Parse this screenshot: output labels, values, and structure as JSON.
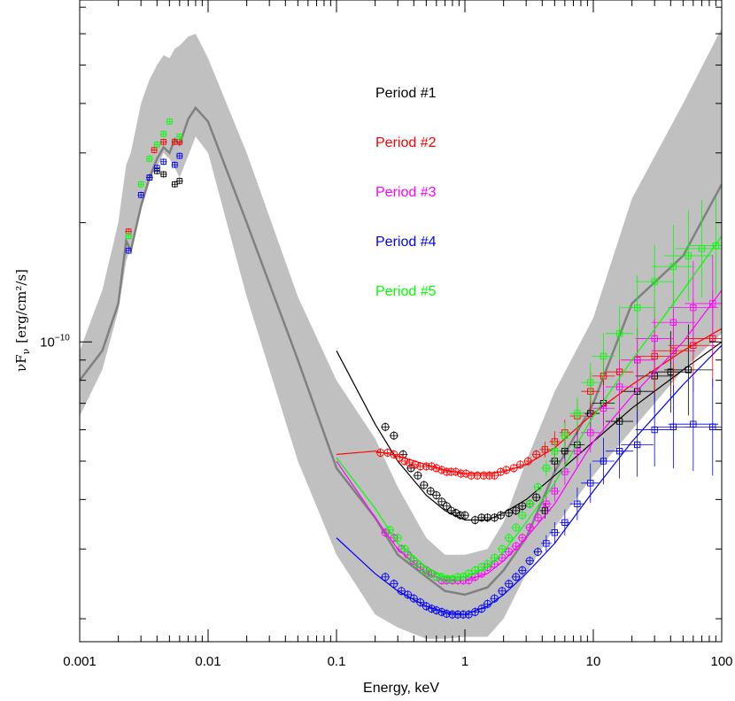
{
  "chart_data": {
    "type": "scatter",
    "title": "",
    "xlabel": "Energy, keV",
    "ylabel": "νF_ν [erg/cm²/s]",
    "ylabel_main": "νF",
    "ylabel_sub": "ν",
    "ylabel_units": "[erg/cm²/s]",
    "xscale": "log",
    "yscale": "log",
    "xlim": [
      0.001,
      100
    ],
    "ylim": [
      1.75e-11,
      7.3e-10
    ],
    "x_ticks": [
      {
        "value": 0.001,
        "label": "0.001"
      },
      {
        "value": 0.01,
        "label": "0.01"
      },
      {
        "value": 0.1,
        "label": "0.1"
      },
      {
        "value": 1,
        "label": "1"
      },
      {
        "value": 10,
        "label": "10"
      },
      {
        "value": 100,
        "label": "100"
      }
    ],
    "y_ticks": [
      {
        "value": 1e-10,
        "label": "10",
        "exponent": "−10"
      }
    ],
    "legend_placement": "top-center",
    "band": {
      "color": "#c0c0c0",
      "x": [
        0.001,
        0.0015,
        0.002,
        0.0023,
        0.0025,
        0.003,
        0.0035,
        0.004,
        0.0045,
        0.005,
        0.0055,
        0.006,
        0.007,
        0.008,
        0.01,
        0.02,
        0.05,
        0.1,
        0.2,
        0.3,
        0.5,
        0.7,
        1,
        1.5,
        2,
        3,
        5,
        10,
        20,
        50,
        100
      ],
      "upper": [
        9.5e-11,
        1.35e-10,
        2e-10,
        2.8e-10,
        3e-10,
        4e-10,
        4.6e-10,
        5e-10,
        5.3e-10,
        5.2e-10,
        5.5e-10,
        5.6e-10,
        5.9e-10,
        6e-10,
        5.2e-10,
        3e-10,
        1.3e-10,
        8e-11,
        5.7e-11,
        4.3e-11,
        3.2e-11,
        2.9e-11,
        2.9e-11,
        3e-11,
        3.5e-11,
        5e-11,
        7.5e-11,
        1.15e-10,
        2.3e-10,
        4e-10,
        6.2e-10
      ],
      "lower": [
        6.5e-11,
        8.5e-11,
        1.2e-10,
        1.6e-10,
        1.75e-10,
        2.2e-10,
        2.6e-10,
        2.75e-10,
        3e-10,
        2.9e-10,
        2.75e-10,
        2.6e-10,
        2.95e-10,
        3.3e-10,
        3e-10,
        1.3e-10,
        5e-11,
        2.9e-11,
        2.05e-11,
        1.9e-11,
        1.78e-11,
        1.78e-11,
        1.8e-11,
        1.8e-11,
        2e-11,
        2.6e-11,
        3.4e-11,
        4.6e-11,
        6e-11,
        8.5e-11,
        1.05e-10
      ]
    },
    "mean_curve": {
      "color": "#808080",
      "x": [
        0.001,
        0.0015,
        0.002,
        0.0023,
        0.0025,
        0.003,
        0.0035,
        0.004,
        0.0045,
        0.005,
        0.0055,
        0.006,
        0.007,
        0.008,
        0.01,
        0.02,
        0.05,
        0.1,
        0.2,
        0.3,
        0.5,
        0.7,
        1,
        1.5,
        2,
        3,
        5,
        10,
        20,
        50,
        100
      ],
      "y": [
        8e-11,
        9.5e-11,
        1.25e-10,
        1.8e-10,
        1.7e-10,
        2.2e-10,
        2.6e-10,
        2.9e-10,
        3.1e-10,
        3e-10,
        3.25e-10,
        3.15e-10,
        3.65e-10,
        3.9e-10,
        3.6e-10,
        2e-10,
        9e-11,
        4.8e-11,
        3.6e-11,
        2.9e-11,
        2.55e-11,
        2.35e-11,
        2.3e-11,
        2.4e-11,
        2.65e-11,
        3.2e-11,
        4.7e-11,
        7e-11,
        1.25e-10,
        1.65e-10,
        2.5e-10
      ]
    },
    "series": [
      {
        "name": "Period #1",
        "color": "#000000",
        "model": {
          "x": [
            0.1,
            0.2,
            0.3,
            0.5,
            0.7,
            1,
            1.5,
            2,
            3,
            5,
            10,
            20,
            50,
            100
          ],
          "y": [
            9.5e-11,
            6.2e-11,
            5e-11,
            4.1e-11,
            3.75e-11,
            3.55e-11,
            3.55e-11,
            3.7e-11,
            4e-11,
            4.6e-11,
            5.6e-11,
            6.8e-11,
            8.5e-11,
            1e-10
          ]
        },
        "optical": {
          "x": [
            0.0035,
            0.004,
            0.0045,
            0.0055,
            0.006
          ],
          "y": [
            2.6e-10,
            2.7e-10,
            2.65e-10,
            2.5e-10,
            2.55e-10
          ]
        },
        "points": {
          "x": [
            0.24,
            0.28,
            0.33,
            0.38,
            0.43,
            0.48,
            0.54,
            0.6,
            0.66,
            0.72,
            0.78,
            0.85,
            0.92,
            1.0,
            1.2,
            1.35,
            1.5,
            1.7,
            1.9,
            2.2,
            2.5,
            2.8,
            3.2,
            3.6,
            4.2,
            5.0,
            6.0,
            7.5,
            9.5,
            12,
            16,
            22,
            30,
            40,
            55
          ],
          "y": [
            6.1e-11,
            5.8e-11,
            5.2e-11,
            4.8e-11,
            4.6e-11,
            4.35e-11,
            4.2e-11,
            4.1e-11,
            3.95e-11,
            3.85e-11,
            3.75e-11,
            3.7e-11,
            3.65e-11,
            3.65e-11,
            3.55e-11,
            3.6e-11,
            3.6e-11,
            3.6e-11,
            3.65e-11,
            3.7e-11,
            3.75e-11,
            3.85e-11,
            3.9e-11,
            4.05e-11,
            3.75e-11,
            5e-11,
            5.3e-11,
            5.5e-11,
            6.6e-11,
            7e-11,
            6.3e-11,
            7.5e-11,
            8.2e-11,
            8.4e-11,
            8.5e-11
          ]
        }
      },
      {
        "name": "Period #2",
        "color": "#ff0000",
        "model": {
          "x": [
            0.1,
            0.2,
            0.3,
            0.5,
            0.7,
            1,
            1.5,
            2,
            3,
            5,
            10,
            20,
            50,
            100
          ],
          "y": [
            5.2e-11,
            5.3e-11,
            5.15e-11,
            4.9e-11,
            4.75e-11,
            4.65e-11,
            4.65e-11,
            4.7e-11,
            4.9e-11,
            5.4e-11,
            6.6e-11,
            7.8e-11,
            9.5e-11,
            1.08e-10
          ]
        },
        "optical": {
          "x": [
            0.0024,
            0.0038,
            0.0045,
            0.0055,
            0.006
          ],
          "y": [
            1.9e-10,
            3.05e-10,
            3.2e-10,
            3.2e-10,
            3.2e-10
          ]
        },
        "points": {
          "x": [
            0.22,
            0.25,
            0.28,
            0.31,
            0.34,
            0.37,
            0.41,
            0.45,
            0.5,
            0.55,
            0.6,
            0.66,
            0.72,
            0.78,
            0.85,
            0.93,
            1.02,
            1.12,
            1.25,
            1.4,
            1.55,
            1.7,
            1.9,
            2.1,
            2.4,
            2.7,
            3.1,
            3.6,
            4.2,
            5.0,
            6.0,
            7.5,
            9.5,
            12,
            16,
            22,
            30,
            42,
            60,
            85
          ],
          "y": [
            5.25e-11,
            5.25e-11,
            5.2e-11,
            5.1e-11,
            5e-11,
            4.95e-11,
            4.9e-11,
            4.85e-11,
            4.85e-11,
            4.85e-11,
            4.8e-11,
            4.75e-11,
            4.7e-11,
            4.7e-11,
            4.7e-11,
            4.65e-11,
            4.65e-11,
            4.6e-11,
            4.6e-11,
            4.6e-11,
            4.6e-11,
            4.6e-11,
            4.7e-11,
            4.75e-11,
            4.8e-11,
            4.9e-11,
            5e-11,
            5.2e-11,
            5.35e-11,
            5.6e-11,
            5.9e-11,
            6.5e-11,
            7.5e-11,
            8.2e-11,
            8.4e-11,
            9e-11,
            9.2e-11,
            9.5e-11,
            9.8e-11,
            1.02e-10
          ]
        }
      },
      {
        "name": "Period #3",
        "color": "#ff00ff",
        "model": {
          "x": [
            0.1,
            0.2,
            0.3,
            0.5,
            0.7,
            1,
            1.5,
            2,
            3,
            5,
            10,
            20,
            50,
            100
          ],
          "y": [
            5e-11,
            3.6e-11,
            3e-11,
            2.6e-11,
            2.5e-11,
            2.5e-11,
            2.6e-11,
            2.8e-11,
            3.2e-11,
            3.9e-11,
            5.6e-11,
            7.3e-11,
            1e-10,
            1.35e-10
          ]
        },
        "optical": {
          "x": [],
          "y": []
        },
        "points": {
          "x": [
            0.24,
            0.28,
            0.32,
            0.36,
            0.4,
            0.45,
            0.5,
            0.55,
            0.6,
            0.66,
            0.72,
            0.8,
            0.88,
            0.97,
            1.07,
            1.2,
            1.35,
            1.5,
            1.7,
            1.95,
            2.2,
            2.5,
            2.8,
            3.2,
            3.7,
            4.3,
            5.0,
            6.0,
            7.5,
            9.5,
            12,
            16,
            22,
            30,
            42,
            60,
            85
          ],
          "y": [
            3.3e-11,
            3.2e-11,
            3e-11,
            2.9e-11,
            2.8e-11,
            2.7e-11,
            2.65e-11,
            2.6e-11,
            2.55e-11,
            2.5e-11,
            2.5e-11,
            2.5e-11,
            2.5e-11,
            2.5e-11,
            2.5e-11,
            2.55e-11,
            2.6e-11,
            2.7e-11,
            2.75e-11,
            2.85e-11,
            2.95e-11,
            3.05e-11,
            3.2e-11,
            3.4e-11,
            3.6e-11,
            3.9e-11,
            4.2e-11,
            4.7e-11,
            5.3e-11,
            5.9e-11,
            6.8e-11,
            7.7e-11,
            9e-11,
            1.02e-10,
            1.12e-10,
            1.22e-10,
            1.25e-10
          ]
        }
      },
      {
        "name": "Period #4",
        "color": "#0000ff",
        "model": {
          "x": [
            0.1,
            0.2,
            0.3,
            0.5,
            0.7,
            1,
            1.5,
            2,
            3,
            5,
            10,
            20,
            50,
            100
          ],
          "y": [
            3.2e-11,
            2.6e-11,
            2.35e-11,
            2.15e-11,
            2.08e-11,
            2.05e-11,
            2.15e-11,
            2.3e-11,
            2.6e-11,
            3.1e-11,
            4.2e-11,
            5.6e-11,
            7.8e-11,
            9.8e-11
          ]
        },
        "optical": {
          "x": [
            0.0024,
            0.003,
            0.0035,
            0.004,
            0.0045,
            0.0055,
            0.006
          ],
          "y": [
            1.7e-10,
            2.35e-10,
            2.6e-10,
            2.75e-10,
            2.85e-10,
            2.8e-10,
            2.95e-10
          ]
        },
        "points": {
          "x": [
            0.24,
            0.28,
            0.32,
            0.36,
            0.4,
            0.45,
            0.5,
            0.55,
            0.6,
            0.66,
            0.72,
            0.8,
            0.88,
            0.97,
            1.07,
            1.2,
            1.35,
            1.5,
            1.7,
            1.95,
            2.2,
            2.5,
            2.8,
            3.2,
            3.7,
            4.3,
            5.0,
            6.0,
            7.5,
            9.5,
            12,
            16,
            22,
            30,
            42,
            60,
            85
          ],
          "y": [
            2.55e-11,
            2.45e-11,
            2.35e-11,
            2.3e-11,
            2.25e-11,
            2.2e-11,
            2.15e-11,
            2.12e-11,
            2.1e-11,
            2.08e-11,
            2.06e-11,
            2.05e-11,
            2.05e-11,
            2.05e-11,
            2.05e-11,
            2.08e-11,
            2.12e-11,
            2.18e-11,
            2.25e-11,
            2.35e-11,
            2.45e-11,
            2.55e-11,
            2.65e-11,
            2.8e-11,
            2.95e-11,
            3.1e-11,
            3.3e-11,
            3.5e-11,
            3.9e-11,
            4.4e-11,
            5e-11,
            5.3e-11,
            5.5e-11,
            6e-11,
            6.1e-11,
            6.2e-11,
            6.1e-11
          ]
        }
      },
      {
        "name": "Period #5",
        "color": "#00ff00",
        "model": {
          "x": [
            0.1,
            0.2,
            0.3,
            0.5,
            0.7,
            1,
            1.5,
            2,
            3,
            5,
            10,
            20,
            50,
            100
          ],
          "y": [
            5.1e-11,
            3.8e-11,
            3.1e-11,
            2.7e-11,
            2.55e-11,
            2.55e-11,
            2.7e-11,
            2.95e-11,
            3.5e-11,
            4.4e-11,
            6.5e-11,
            9e-11,
            1.35e-10,
            1.85e-10
          ]
        },
        "optical": {
          "x": [
            0.0024,
            0.003,
            0.0035,
            0.004,
            0.0045,
            0.005,
            0.006
          ],
          "y": [
            1.85e-10,
            2.5e-10,
            2.9e-10,
            3.15e-10,
            3.35e-10,
            3.6e-10,
            3.3e-10
          ]
        },
        "points": {
          "x": [
            0.26,
            0.3,
            0.34,
            0.38,
            0.43,
            0.48,
            0.54,
            0.6,
            0.66,
            0.73,
            0.8,
            0.88,
            0.97,
            1.07,
            1.2,
            1.35,
            1.5,
            1.7,
            1.95,
            2.2,
            2.5,
            2.8,
            3.2,
            3.7,
            4.3,
            5.0,
            6.0,
            7.5,
            9.5,
            12,
            16,
            22,
            30,
            42,
            55,
            70,
            90
          ],
          "y": [
            3.35e-11,
            3.2e-11,
            3e-11,
            2.85e-11,
            2.75e-11,
            2.65e-11,
            2.6e-11,
            2.55e-11,
            2.55e-11,
            2.52e-11,
            2.52e-11,
            2.55e-11,
            2.55e-11,
            2.6e-11,
            2.65e-11,
            2.7e-11,
            2.75e-11,
            2.85e-11,
            3e-11,
            3.2e-11,
            3.4e-11,
            3.65e-11,
            3.9e-11,
            4.3e-11,
            4.8e-11,
            5.3e-11,
            5.8e-11,
            6.6e-11,
            7.9e-11,
            9.2e-11,
            1.05e-10,
            1.22e-10,
            1.42e-10,
            1.55e-10,
            1.65e-10,
            1.72e-10,
            1.75e-10
          ]
        }
      }
    ]
  }
}
